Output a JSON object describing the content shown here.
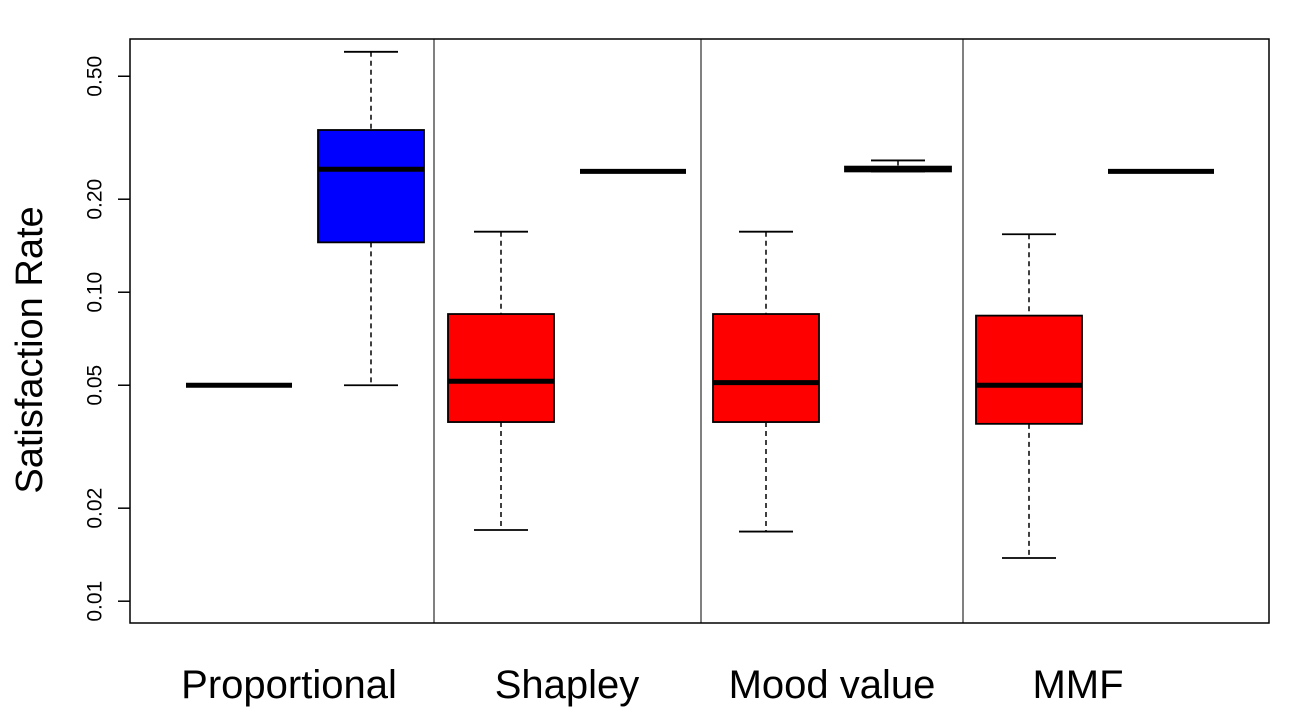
{
  "chart_data": {
    "type": "boxplot",
    "ylabel": "Satisfaction Rate",
    "yscale": "log",
    "ylim": [
      0.0085,
      0.66
    ],
    "yticks": [
      {
        "value": 0.01,
        "label": "0.01"
      },
      {
        "value": 0.02,
        "label": "0.02"
      },
      {
        "value": 0.05,
        "label": "0.05"
      },
      {
        "value": 0.1,
        "label": "0.10"
      },
      {
        "value": 0.2,
        "label": "0.20"
      },
      {
        "value": 0.5,
        "label": "0.50"
      }
    ],
    "groups": [
      {
        "name": "Proportional",
        "boxes": [
          {
            "series": "red",
            "min": 0.05,
            "q1": 0.05,
            "median": 0.05,
            "q3": 0.05,
            "max": 0.05
          },
          {
            "series": "blue",
            "min": 0.05,
            "q1": 0.145,
            "median": 0.25,
            "q3": 0.335,
            "max": 0.6
          }
        ]
      },
      {
        "name": "Shapley",
        "boxes": [
          {
            "series": "red",
            "min": 0.017,
            "q1": 0.038,
            "median": 0.0515,
            "q3": 0.085,
            "max": 0.157
          },
          {
            "series": "blue",
            "min": 0.246,
            "q1": 0.246,
            "median": 0.246,
            "q3": 0.246,
            "max": 0.246
          }
        ]
      },
      {
        "name": "Mood value",
        "boxes": [
          {
            "series": "red",
            "min": 0.0168,
            "q1": 0.038,
            "median": 0.051,
            "q3": 0.085,
            "max": 0.157
          },
          {
            "series": "blue",
            "min": 0.246,
            "q1": 0.246,
            "median": 0.25,
            "q3": 0.255,
            "max": 0.267
          }
        ]
      },
      {
        "name": "MMF",
        "boxes": [
          {
            "series": "red",
            "min": 0.0138,
            "q1": 0.0375,
            "median": 0.05,
            "q3": 0.084,
            "max": 0.154
          },
          {
            "series": "blue",
            "min": 0.246,
            "q1": 0.246,
            "median": 0.246,
            "q3": 0.246,
            "max": 0.246
          }
        ]
      }
    ],
    "series_colors": {
      "red": "#ff0000",
      "blue": "#0000ff"
    }
  }
}
